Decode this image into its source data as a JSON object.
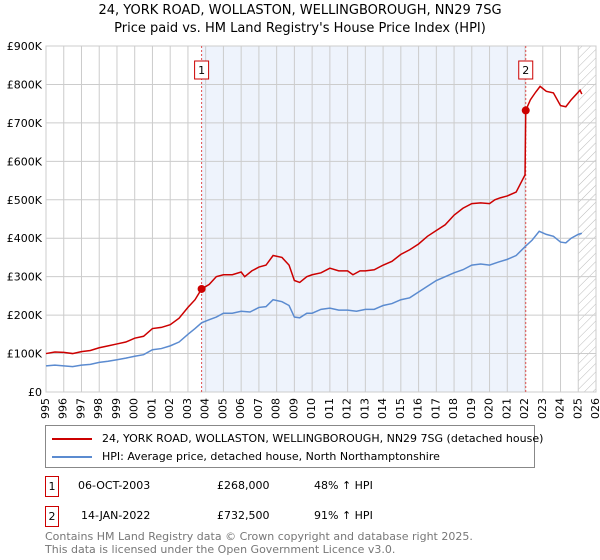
{
  "chart_data": {
    "type": "line",
    "title": "24, YORK ROAD, WOLLASTON, WELLINGBOROUGH, NN29 7SG",
    "subtitle": "Price paid vs. HM Land Registry's House Price Index (HPI)",
    "xlim": [
      1995,
      2026
    ],
    "ylim": [
      0,
      900000
    ],
    "x_ticks": [
      "1995",
      "1996",
      "1997",
      "1998",
      "1999",
      "2000",
      "2001",
      "2002",
      "2003",
      "2004",
      "2005",
      "2006",
      "2007",
      "2008",
      "2009",
      "2010",
      "2011",
      "2012",
      "2013",
      "2014",
      "2015",
      "2016",
      "2017",
      "2018",
      "2019",
      "2020",
      "2021",
      "2022",
      "2023",
      "2024",
      "2025",
      "2026"
    ],
    "y_ticks": [
      {
        "v": 0,
        "label": "£0"
      },
      {
        "v": 100000,
        "label": "£100K"
      },
      {
        "v": 200000,
        "label": "£200K"
      },
      {
        "v": 300000,
        "label": "£300K"
      },
      {
        "v": 400000,
        "label": "£400K"
      },
      {
        "v": 500000,
        "label": "£500K"
      },
      {
        "v": 600000,
        "label": "£600K"
      },
      {
        "v": 700000,
        "label": "£700K"
      },
      {
        "v": 800000,
        "label": "£800K"
      },
      {
        "v": 900000,
        "label": "£900K"
      }
    ],
    "grid": true,
    "shaded_range": [
      2003.77,
      2022.04
    ],
    "forecast_hatch_from": 2025.0,
    "series": [
      {
        "name": "24, YORK ROAD, WOLLASTON, WELLINGBOROUGH, NN29 7SG (detached house)",
        "color": "#cc0000",
        "x": [
          1995,
          1995.5,
          1996,
          1996.5,
          1997,
          1997.5,
          1998,
          1998.5,
          1999,
          1999.5,
          2000,
          2000.5,
          2001,
          2001.5,
          2002,
          2002.5,
          2003,
          2003.4,
          2003.77,
          2004.2,
          2004.6,
          2005,
          2005.5,
          2006,
          2006.2,
          2006.6,
          2007,
          2007.4,
          2007.8,
          2008.3,
          2008.7,
          2009,
          2009.3,
          2009.7,
          2010,
          2010.5,
          2011,
          2011.5,
          2012,
          2012.3,
          2012.7,
          2013,
          2013.5,
          2014,
          2014.5,
          2015,
          2015.5,
          2016,
          2016.5,
          2017,
          2017.5,
          2018,
          2018.5,
          2019,
          2019.5,
          2020,
          2020.3,
          2020.6,
          2021,
          2021.5,
          2022.0,
          2022.04,
          2022.3,
          2022.6,
          2022.85,
          2023.2,
          2023.6,
          2024,
          2024.3,
          2024.6,
          2024.9,
          2025.1,
          2025.2
        ],
        "y": [
          100,
          104,
          103,
          100,
          105,
          108,
          115,
          120,
          125,
          130,
          140,
          145,
          165,
          168,
          175,
          192,
          220,
          240,
          268,
          280,
          300,
          305,
          305,
          312,
          300,
          315,
          325,
          330,
          355,
          350,
          330,
          290,
          285,
          300,
          305,
          310,
          322,
          315,
          315,
          305,
          315,
          315,
          318,
          330,
          340,
          358,
          370,
          385,
          405,
          420,
          435,
          460,
          478,
          490,
          492,
          490,
          500,
          505,
          510,
          520,
          565,
          732.5,
          760,
          780,
          795,
          782,
          778,
          745,
          742,
          760,
          775,
          785,
          775
        ]
      },
      {
        "name": "HPI: Average price, detached house, North Northamptonshire",
        "color": "#5b8bd0",
        "x": [
          1995,
          1995.5,
          1996,
          1996.5,
          1997,
          1997.5,
          1998,
          1998.5,
          1999,
          1999.5,
          2000,
          2000.5,
          2001,
          2001.5,
          2002,
          2002.5,
          2003,
          2003.4,
          2003.77,
          2004.2,
          2004.6,
          2005,
          2005.5,
          2006,
          2006.5,
          2007,
          2007.4,
          2007.8,
          2008.3,
          2008.7,
          2009,
          2009.3,
          2009.7,
          2010,
          2010.5,
          2011,
          2011.5,
          2012,
          2012.5,
          2013,
          2013.5,
          2014,
          2014.5,
          2015,
          2015.5,
          2016,
          2016.5,
          2017,
          2017.5,
          2018,
          2018.5,
          2019,
          2019.5,
          2020,
          2020.5,
          2021,
          2021.5,
          2022,
          2022.4,
          2022.8,
          2023.2,
          2023.6,
          2024,
          2024.3,
          2024.6,
          2025,
          2025.2
        ],
        "y": [
          68,
          70,
          68,
          66,
          70,
          72,
          77,
          80,
          84,
          88,
          93,
          97,
          110,
          113,
          120,
          130,
          150,
          165,
          180,
          188,
          195,
          205,
          205,
          210,
          208,
          220,
          222,
          240,
          235,
          225,
          195,
          193,
          205,
          205,
          215,
          218,
          213,
          213,
          210,
          215,
          215,
          225,
          230,
          240,
          245,
          260,
          275,
          290,
          300,
          310,
          318,
          330,
          333,
          330,
          338,
          345,
          355,
          378,
          395,
          418,
          410,
          405,
          390,
          388,
          400,
          410,
          413
        ]
      }
    ],
    "markers": [
      {
        "label": "1",
        "x": 2003.77,
        "y": 268000
      },
      {
        "label": "2",
        "x": 2022.04,
        "y": 732500
      }
    ]
  },
  "legend": [
    {
      "label": "24, YORK ROAD, WOLLASTON, WELLINGBOROUGH, NN29 7SG (detached house)",
      "color": "#cc0000"
    },
    {
      "label": "HPI: Average price, detached house, North Northamptonshire",
      "color": "#5b8bd0"
    }
  ],
  "transactions": [
    {
      "num": "1",
      "date": "06-OCT-2003",
      "price": "£268,000",
      "hpi": "48% ↑ HPI"
    },
    {
      "num": "2",
      "date": "14-JAN-2022",
      "price": "£732,500",
      "hpi": "91% ↑ HPI"
    }
  ],
  "footer": [
    "Contains HM Land Registry data © Crown copyright and database right 2025.",
    "This data is licensed under the Open Government Licence v3.0."
  ]
}
